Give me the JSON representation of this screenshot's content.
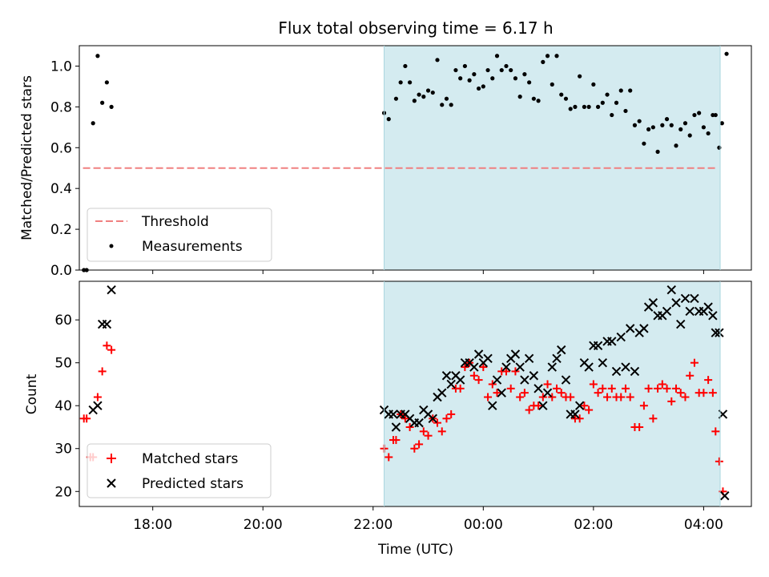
{
  "figure": {
    "title": "Flux total observing time = 6.17 h",
    "xlabel": "Time (UTC)",
    "shade_color": "#d4ebf0",
    "shade_start": "22:12",
    "shade_end": "04:18",
    "xlim": [
      "16:40",
      "04:52"
    ],
    "xticks": [
      "18:00",
      "20:00",
      "22:00",
      "00:00",
      "02:00",
      "04:00"
    ]
  },
  "chart_data": [
    {
      "type": "scatter",
      "ylabel": "Matched/Predicted stars",
      "ylim": [
        0,
        1.1
      ],
      "yticks": [
        "0.0",
        "0.2",
        "0.4",
        "0.6",
        "0.8",
        "1.0"
      ],
      "legend": {
        "placement": "lower-left",
        "entries": [
          "Threshold",
          "Measurements"
        ]
      },
      "threshold": {
        "name": "Threshold",
        "value": 0.5,
        "x_start": "16:44",
        "x_end": "04:14",
        "color": "#f08080",
        "style": "dashed"
      },
      "measurements": {
        "name": "Measurements",
        "color": "#000000",
        "points": [
          [
            "16:45",
            0.0
          ],
          [
            "16:48",
            0.0
          ],
          [
            "16:55",
            0.72
          ],
          [
            "17:00",
            1.05
          ],
          [
            "17:05",
            0.82
          ],
          [
            "17:10",
            0.92
          ],
          [
            "17:15",
            0.8
          ],
          [
            "22:12",
            0.77
          ],
          [
            "22:17",
            0.74
          ],
          [
            "22:25",
            0.84
          ],
          [
            "22:30",
            0.92
          ],
          [
            "22:35",
            1.0
          ],
          [
            "22:40",
            0.92
          ],
          [
            "22:45",
            0.83
          ],
          [
            "22:50",
            0.86
          ],
          [
            "22:55",
            0.85
          ],
          [
            "23:00",
            0.88
          ],
          [
            "23:05",
            0.87
          ],
          [
            "23:10",
            1.03
          ],
          [
            "23:15",
            0.81
          ],
          [
            "23:20",
            0.84
          ],
          [
            "23:25",
            0.81
          ],
          [
            "23:30",
            0.98
          ],
          [
            "23:35",
            0.94
          ],
          [
            "23:40",
            1.0
          ],
          [
            "23:45",
            0.93
          ],
          [
            "23:50",
            0.96
          ],
          [
            "23:55",
            0.89
          ],
          [
            "00:00",
            0.9
          ],
          [
            "00:05",
            0.98
          ],
          [
            "00:10",
            0.94
          ],
          [
            "00:15",
            1.05
          ],
          [
            "00:20",
            0.98
          ],
          [
            "00:25",
            1.0
          ],
          [
            "00:30",
            0.98
          ],
          [
            "00:35",
            0.94
          ],
          [
            "00:40",
            0.85
          ],
          [
            "00:45",
            0.96
          ],
          [
            "00:50",
            0.92
          ],
          [
            "00:55",
            0.84
          ],
          [
            "01:00",
            0.83
          ],
          [
            "01:05",
            1.02
          ],
          [
            "01:10",
            1.05
          ],
          [
            "01:15",
            0.91
          ],
          [
            "01:20",
            1.05
          ],
          [
            "01:25",
            0.86
          ],
          [
            "01:30",
            0.84
          ],
          [
            "01:35",
            0.79
          ],
          [
            "01:40",
            0.8
          ],
          [
            "01:45",
            0.95
          ],
          [
            "01:50",
            0.8
          ],
          [
            "01:55",
            0.8
          ],
          [
            "02:00",
            0.91
          ],
          [
            "02:05",
            0.8
          ],
          [
            "02:10",
            0.82
          ],
          [
            "02:15",
            0.86
          ],
          [
            "02:20",
            0.76
          ],
          [
            "02:25",
            0.82
          ],
          [
            "02:30",
            0.88
          ],
          [
            "02:35",
            0.78
          ],
          [
            "02:40",
            0.88
          ],
          [
            "02:45",
            0.71
          ],
          [
            "02:50",
            0.73
          ],
          [
            "02:55",
            0.62
          ],
          [
            "03:00",
            0.69
          ],
          [
            "03:05",
            0.7
          ],
          [
            "03:10",
            0.58
          ],
          [
            "03:15",
            0.71
          ],
          [
            "03:20",
            0.74
          ],
          [
            "03:25",
            0.71
          ],
          [
            "03:30",
            0.61
          ],
          [
            "03:35",
            0.69
          ],
          [
            "03:40",
            0.72
          ],
          [
            "03:45",
            0.66
          ],
          [
            "03:50",
            0.76
          ],
          [
            "03:55",
            0.77
          ],
          [
            "04:00",
            0.7
          ],
          [
            "04:05",
            0.67
          ],
          [
            "04:10",
            0.76
          ],
          [
            "04:13",
            0.76
          ],
          [
            "04:17",
            0.6
          ],
          [
            "04:20",
            0.72
          ],
          [
            "04:25",
            1.06
          ]
        ]
      }
    },
    {
      "type": "scatter",
      "ylabel": "Count",
      "ylim": [
        16.5,
        69
      ],
      "yticks": [
        "20",
        "30",
        "40",
        "50",
        "60"
      ],
      "legend": {
        "placement": "lower-left",
        "entries": [
          "Matched stars",
          "Predicted stars"
        ]
      },
      "series": [
        {
          "name": "Matched stars",
          "marker": "+",
          "color": "#ff0000",
          "points": [
            [
              "16:45",
              37
            ],
            [
              "16:48",
              37
            ],
            [
              "16:52",
              28
            ],
            [
              "16:55",
              28
            ],
            [
              "17:00",
              42
            ],
            [
              "17:05",
              48
            ],
            [
              "17:10",
              54
            ],
            [
              "17:15",
              53
            ],
            [
              "22:12",
              30
            ],
            [
              "22:17",
              28
            ],
            [
              "22:22",
              32
            ],
            [
              "22:25",
              32
            ],
            [
              "22:30",
              38
            ],
            [
              "22:35",
              37
            ],
            [
              "22:40",
              35
            ],
            [
              "22:45",
              30
            ],
            [
              "22:50",
              31
            ],
            [
              "22:55",
              34
            ],
            [
              "23:00",
              33
            ],
            [
              "23:05",
              37
            ],
            [
              "23:10",
              36
            ],
            [
              "23:15",
              34
            ],
            [
              "23:20",
              37
            ],
            [
              "23:25",
              38
            ],
            [
              "23:30",
              44
            ],
            [
              "23:35",
              44
            ],
            [
              "23:40",
              49
            ],
            [
              "23:45",
              50
            ],
            [
              "23:50",
              47
            ],
            [
              "23:55",
              46
            ],
            [
              "00:00",
              49
            ],
            [
              "00:05",
              42
            ],
            [
              "00:10",
              45
            ],
            [
              "00:15",
              43
            ],
            [
              "00:20",
              48
            ],
            [
              "00:25",
              48
            ],
            [
              "00:30",
              44
            ],
            [
              "00:35",
              48
            ],
            [
              "00:40",
              42
            ],
            [
              "00:45",
              43
            ],
            [
              "00:50",
              39
            ],
            [
              "00:55",
              40
            ],
            [
              "01:00",
              40
            ],
            [
              "01:05",
              42
            ],
            [
              "01:10",
              45
            ],
            [
              "01:15",
              42
            ],
            [
              "01:20",
              44
            ],
            [
              "01:25",
              43
            ],
            [
              "01:30",
              42
            ],
            [
              "01:35",
              42
            ],
            [
              "01:40",
              37
            ],
            [
              "01:45",
              37
            ],
            [
              "01:50",
              40
            ],
            [
              "01:55",
              39
            ],
            [
              "02:00",
              45
            ],
            [
              "02:05",
              43
            ],
            [
              "02:10",
              44
            ],
            [
              "02:15",
              42
            ],
            [
              "02:20",
              44
            ],
            [
              "02:25",
              42
            ],
            [
              "02:30",
              42
            ],
            [
              "02:35",
              44
            ],
            [
              "02:40",
              42
            ],
            [
              "02:45",
              35
            ],
            [
              "02:50",
              35
            ],
            [
              "02:55",
              40
            ],
            [
              "03:00",
              44
            ],
            [
              "03:05",
              37
            ],
            [
              "03:10",
              44
            ],
            [
              "03:15",
              45
            ],
            [
              "03:20",
              44
            ],
            [
              "03:25",
              41
            ],
            [
              "03:30",
              44
            ],
            [
              "03:35",
              43
            ],
            [
              "03:40",
              42
            ],
            [
              "03:45",
              47
            ],
            [
              "03:50",
              50
            ],
            [
              "03:55",
              43
            ],
            [
              "04:00",
              43
            ],
            [
              "04:05",
              46
            ],
            [
              "04:10",
              43
            ],
            [
              "04:13",
              34
            ],
            [
              "04:17",
              27
            ],
            [
              "04:21",
              20
            ]
          ]
        },
        {
          "name": "Predicted stars",
          "marker": "x",
          "color": "#000000",
          "points": [
            [
              "16:55",
              39
            ],
            [
              "17:00",
              40
            ],
            [
              "17:05",
              59
            ],
            [
              "17:10",
              59
            ],
            [
              "17:15",
              67
            ],
            [
              "22:12",
              39
            ],
            [
              "22:17",
              38
            ],
            [
              "22:22",
              38
            ],
            [
              "22:25",
              35
            ],
            [
              "22:30",
              38
            ],
            [
              "22:35",
              38
            ],
            [
              "22:40",
              37
            ],
            [
              "22:45",
              36
            ],
            [
              "22:50",
              36
            ],
            [
              "22:55",
              39
            ],
            [
              "23:00",
              38
            ],
            [
              "23:05",
              37
            ],
            [
              "23:10",
              42
            ],
            [
              "23:15",
              43
            ],
            [
              "23:20",
              47
            ],
            [
              "23:25",
              45
            ],
            [
              "23:30",
              47
            ],
            [
              "23:35",
              46
            ],
            [
              "23:40",
              50
            ],
            [
              "23:45",
              50
            ],
            [
              "23:50",
              49
            ],
            [
              "23:55",
              52
            ],
            [
              "00:00",
              50
            ],
            [
              "00:05",
              51
            ],
            [
              "00:10",
              40
            ],
            [
              "00:15",
              46
            ],
            [
              "00:20",
              43
            ],
            [
              "00:25",
              49
            ],
            [
              "00:30",
              51
            ],
            [
              "00:35",
              52
            ],
            [
              "00:40",
              49
            ],
            [
              "00:45",
              46
            ],
            [
              "00:50",
              51
            ],
            [
              "00:55",
              47
            ],
            [
              "01:00",
              44
            ],
            [
              "01:05",
              40
            ],
            [
              "01:10",
              43
            ],
            [
              "01:15",
              49
            ],
            [
              "01:20",
              51
            ],
            [
              "01:25",
              53
            ],
            [
              "01:30",
              46
            ],
            [
              "01:35",
              38
            ],
            [
              "01:40",
              38
            ],
            [
              "01:45",
              40
            ],
            [
              "01:50",
              50
            ],
            [
              "01:55",
              49
            ],
            [
              "02:00",
              54
            ],
            [
              "02:05",
              54
            ],
            [
              "02:10",
              50
            ],
            [
              "02:15",
              55
            ],
            [
              "02:20",
              55
            ],
            [
              "02:25",
              48
            ],
            [
              "02:30",
              56
            ],
            [
              "02:35",
              49
            ],
            [
              "02:40",
              58
            ],
            [
              "02:45",
              48
            ],
            [
              "02:50",
              57
            ],
            [
              "02:55",
              58
            ],
            [
              "03:00",
              63
            ],
            [
              "03:05",
              64
            ],
            [
              "03:10",
              61
            ],
            [
              "03:15",
              61
            ],
            [
              "03:20",
              62
            ],
            [
              "03:25",
              67
            ],
            [
              "03:30",
              64
            ],
            [
              "03:35",
              59
            ],
            [
              "03:40",
              65
            ],
            [
              "03:45",
              62
            ],
            [
              "03:50",
              65
            ],
            [
              "03:55",
              62
            ],
            [
              "04:00",
              62
            ],
            [
              "04:05",
              63
            ],
            [
              "04:10",
              61
            ],
            [
              "04:13",
              57
            ],
            [
              "04:17",
              57
            ],
            [
              "04:21",
              38
            ],
            [
              "04:23",
              19
            ]
          ]
        }
      ]
    }
  ]
}
